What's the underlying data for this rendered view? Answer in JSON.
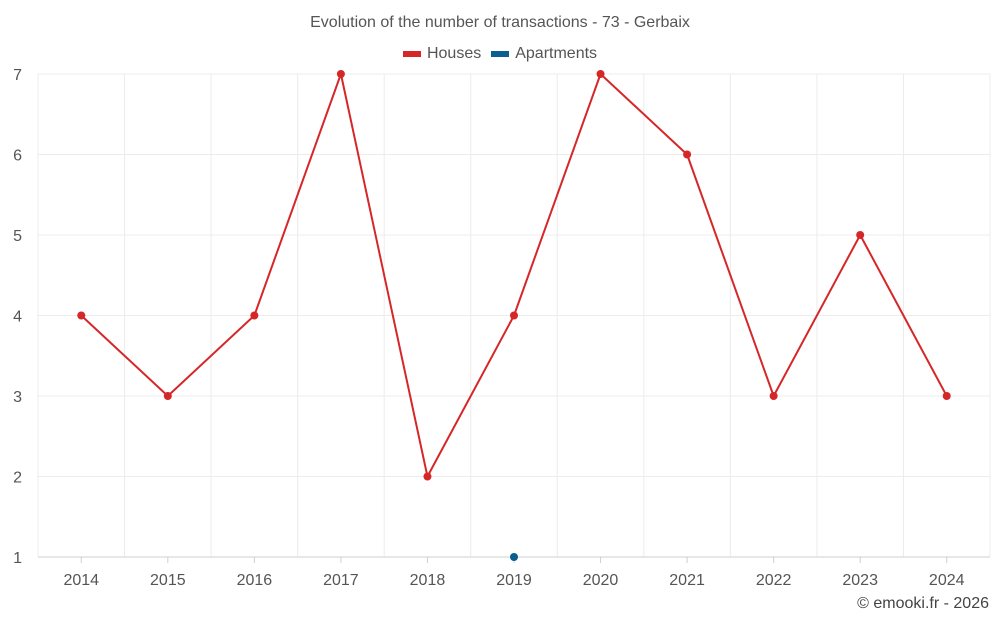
{
  "chart_data": {
    "type": "line",
    "title": "Evolution of the number of transactions - 73 - Gerbaix",
    "categories": [
      "2014",
      "2015",
      "2016",
      "2017",
      "2018",
      "2019",
      "2020",
      "2021",
      "2022",
      "2023",
      "2024"
    ],
    "series": [
      {
        "name": "Houses",
        "color": "#d62728",
        "values": [
          4,
          3,
          4,
          7,
          2,
          4,
          7,
          6,
          3,
          5,
          3
        ]
      },
      {
        "name": "Apartments",
        "color": "#0b5f8f",
        "values": [
          null,
          null,
          null,
          null,
          null,
          1,
          null,
          null,
          null,
          null,
          null
        ]
      }
    ],
    "ylim": [
      1,
      7
    ],
    "yticks": [
      1,
      2,
      3,
      4,
      5,
      6,
      7
    ],
    "grid": true,
    "legend_position": "top-center"
  },
  "credit": "© emooki.fr - 2026"
}
